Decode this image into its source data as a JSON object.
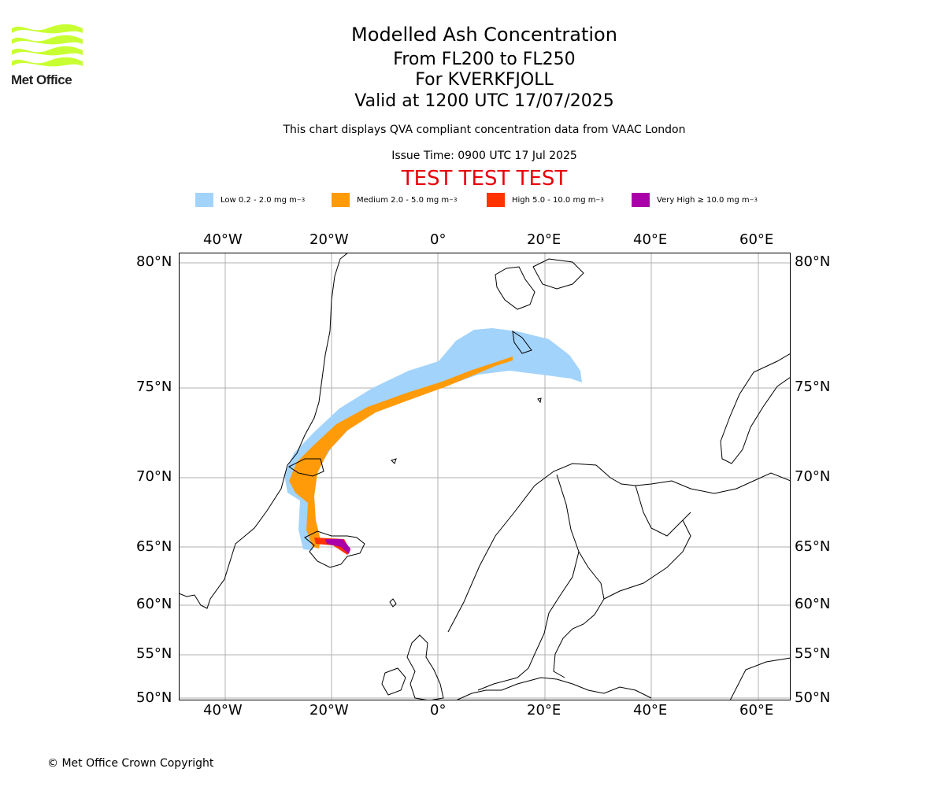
{
  "header": {
    "title": "Modelled Ash Concentration",
    "levels": "From FL200 to FL250",
    "volcano": "For KVERKFJOLL",
    "valid": "Valid at 1200 UTC 17/07/2025",
    "note": "This chart displays QVA compliant concentration data from VAAC London",
    "issue": "Issue Time: 0900 UTC 17 Jul 2025",
    "test_banner": "TEST TEST TEST"
  },
  "logo": {
    "text": "Met Office",
    "color": "#c8ff33"
  },
  "legend": [
    {
      "range": "Low 0.2 - 2.0 mg m",
      "color": "#a2d3fb"
    },
    {
      "range": "Medium 2.0 - 5.0 mg m",
      "color": "#ff9a09"
    },
    {
      "range": "High 5.0 - 10.0 mg m",
      "color": "#ff3300"
    },
    {
      "range": "Very High  ≥  10.0 mg m",
      "color": "#aa00aa"
    }
  ],
  "legend_unit_sup": "−3",
  "axes": {
    "lon_ticks": [
      "40°W",
      "20°W",
      "0°",
      "20°E",
      "40°E",
      "60°E"
    ],
    "lat_ticks": [
      "80°N",
      "75°N",
      "70°N",
      "65°N",
      "60°N",
      "55°N",
      "50°N"
    ]
  },
  "footer": {
    "copyright": "© Met Office Crown Copyright"
  }
}
